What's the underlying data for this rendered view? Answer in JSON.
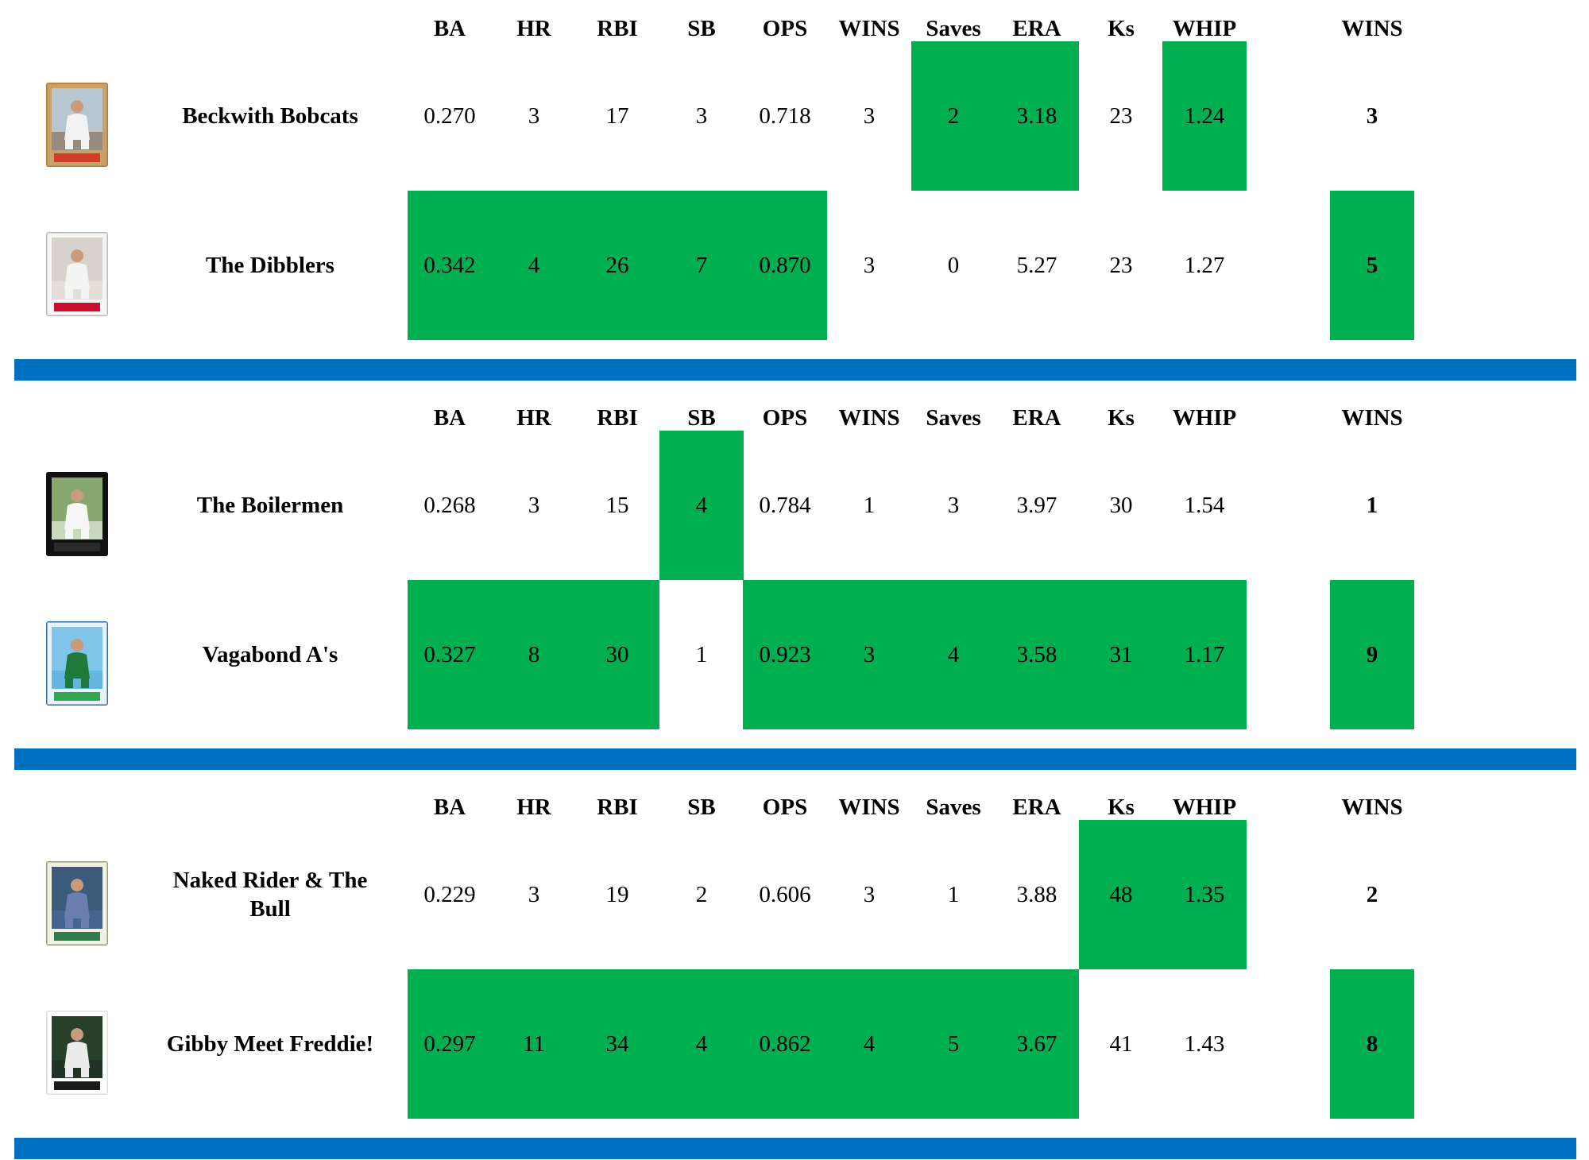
{
  "columns": [
    "BA",
    "HR",
    "RBI",
    "SB",
    "OPS",
    "WINS",
    "Saves",
    "ERA",
    "Ks",
    "WHIP"
  ],
  "total_label": "WINS",
  "colors": {
    "win_highlight": "#00b050",
    "divider": "#0070c0"
  },
  "matchups": [
    {
      "teams": [
        {
          "name": "Beckwith Bobcats",
          "card_icon": "pitcher-baseball-card-icon",
          "stats": [
            "0.270",
            "3",
            "17",
            "3",
            "0.718",
            "3",
            "2",
            "3.18",
            "23",
            "1.24"
          ],
          "won": [
            false,
            false,
            false,
            false,
            false,
            false,
            true,
            true,
            false,
            true
          ],
          "wins": "3",
          "total_won": false
        },
        {
          "name": "The Dibblers",
          "card_icon": "batter-baseball-card-icon",
          "stats": [
            "0.342",
            "4",
            "26",
            "7",
            "0.870",
            "3",
            "0",
            "5.27",
            "23",
            "1.27"
          ],
          "won": [
            true,
            true,
            true,
            true,
            true,
            false,
            false,
            false,
            false,
            false
          ],
          "wins": "5",
          "total_won": true
        }
      ]
    },
    {
      "teams": [
        {
          "name": "The Boilermen",
          "card_icon": "player-baseball-card-icon",
          "stats": [
            "0.268",
            "3",
            "15",
            "4",
            "0.784",
            "1",
            "3",
            "3.97",
            "30",
            "1.54"
          ],
          "won": [
            false,
            false,
            false,
            true,
            false,
            false,
            false,
            false,
            false,
            false
          ],
          "wins": "1",
          "total_won": false
        },
        {
          "name": "Vagabond A's",
          "card_icon": "outfielder-baseball-card-icon",
          "stats": [
            "0.327",
            "8",
            "30",
            "1",
            "0.923",
            "3",
            "4",
            "3.58",
            "31",
            "1.17"
          ],
          "won": [
            true,
            true,
            true,
            false,
            true,
            true,
            true,
            true,
            true,
            true
          ],
          "wins": "9",
          "total_won": true
        }
      ]
    },
    {
      "teams": [
        {
          "name": "Naked Rider & The Bull",
          "card_icon": "hitter-baseball-card-icon",
          "stats": [
            "0.229",
            "3",
            "19",
            "2",
            "0.606",
            "3",
            "1",
            "3.88",
            "48",
            "1.35"
          ],
          "won": [
            false,
            false,
            false,
            false,
            false,
            false,
            false,
            false,
            true,
            true
          ],
          "wins": "2",
          "total_won": false
        },
        {
          "name": "Gibby Meet Freddie!",
          "card_icon": "slugger-baseball-card-icon",
          "stats": [
            "0.297",
            "11",
            "34",
            "4",
            "0.862",
            "4",
            "5",
            "3.67",
            "41",
            "1.43"
          ],
          "won": [
            true,
            true,
            true,
            true,
            true,
            true,
            true,
            true,
            false,
            false
          ],
          "wins": "8",
          "total_won": true
        }
      ]
    }
  ]
}
